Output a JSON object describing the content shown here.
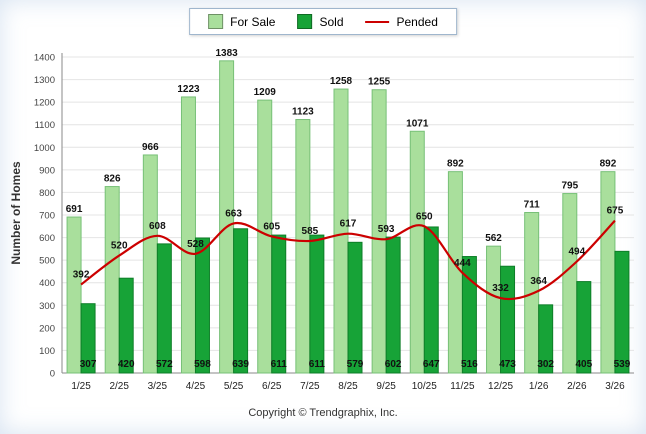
{
  "chart_data": {
    "type": "bar",
    "title": "",
    "categories": [
      "1/25",
      "2/25",
      "3/25",
      "4/25",
      "5/25",
      "6/25",
      "7/25",
      "8/25",
      "9/25",
      "10/25",
      "11/25",
      "12/25",
      "1/26",
      "2/26",
      "3/26"
    ],
    "series": [
      {
        "name": "For Sale",
        "type": "bar",
        "color": "#A9DF9C",
        "border": "#77C077",
        "values": [
          691,
          826,
          966,
          1223,
          1383,
          1209,
          1123,
          1258,
          1255,
          1071,
          892,
          562,
          711,
          795,
          892
        ]
      },
      {
        "name": "Sold",
        "type": "bar",
        "color": "#17A337",
        "border": "#0E7E28",
        "values": [
          307,
          420,
          572,
          598,
          639,
          611,
          611,
          579,
          602,
          647,
          516,
          473,
          302,
          405,
          539
        ]
      },
      {
        "name": "Pended",
        "type": "line",
        "color": "#CC0000",
        "values": [
          392,
          520,
          608,
          528,
          663,
          605,
          585,
          617,
          593,
          650,
          444,
          332,
          364,
          494,
          675
        ]
      }
    ],
    "ylabel": "Number of Homes",
    "xlabel": "",
    "ylim": [
      0,
      1400
    ],
    "ytick_step": 100,
    "grid": true,
    "legend_position": "top",
    "data_labels": true
  },
  "footer": "Copyright © Trendgraphix, Inc."
}
